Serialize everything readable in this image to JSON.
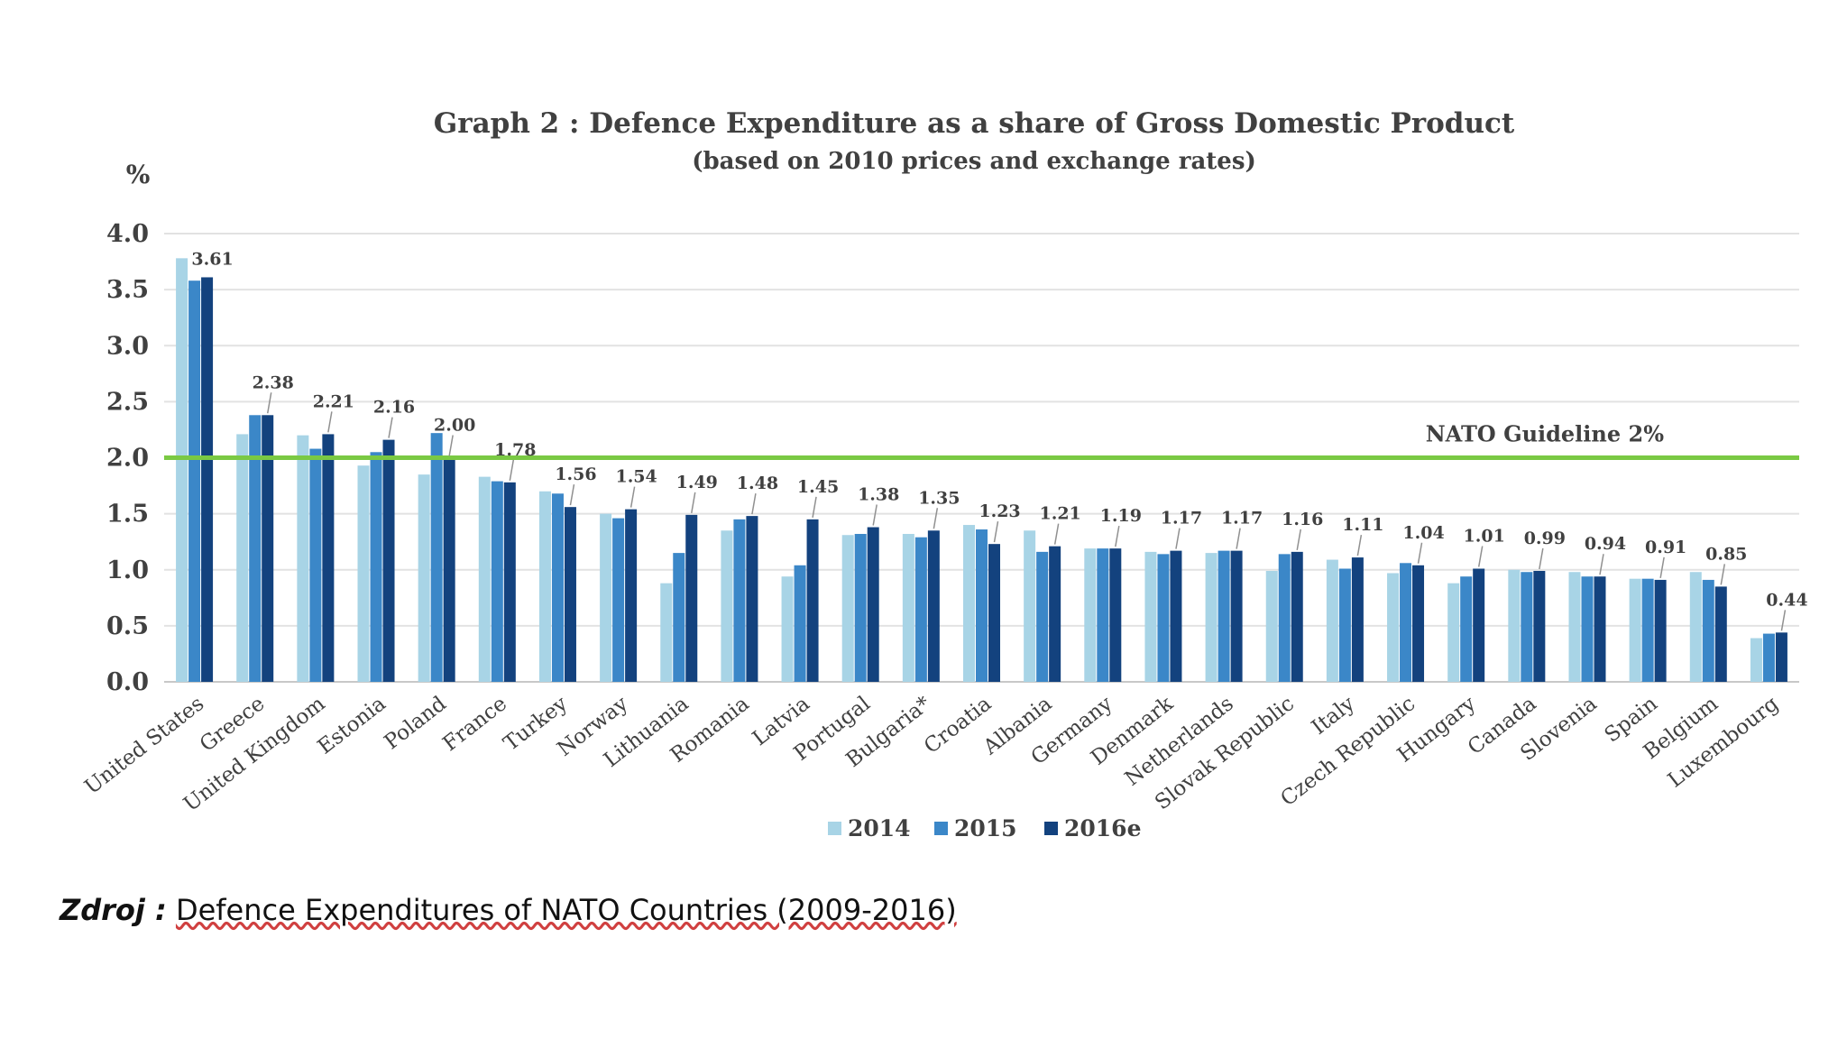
{
  "source": {
    "label": "Zdroj :",
    "text": "Defence Expenditures of NATO Countries (2009-2016)"
  },
  "chart_data": {
    "type": "bar",
    "title": "Graph 2 : Defence Expenditure as a share of Gross Domestic Product",
    "subtitle": "(based on 2010 prices and exchange rates)",
    "ylabel": "%",
    "xlabel": "",
    "ylim": [
      0,
      4
    ],
    "yticks": [
      "0.0",
      "0.5",
      "1.0",
      "1.5",
      "2.0",
      "2.5",
      "3.0",
      "3.5",
      "4.0"
    ],
    "grid": true,
    "legend_position": "bottom",
    "reference_line": {
      "value": 2.0,
      "label": "NATO Guideline 2%",
      "color": "#7ac943"
    },
    "categories": [
      "United States",
      "Greece",
      "United Kingdom",
      "Estonia",
      "Poland",
      "France",
      "Turkey",
      "Norway",
      "Lithuania",
      "Romania",
      "Latvia",
      "Portugal",
      "Bulgaria*",
      "Croatia",
      "Albania",
      "Germany",
      "Denmark",
      "Netherlands",
      "Slovak Republic",
      "Italy",
      "Czech Republic",
      "Hungary",
      "Canada",
      "Slovenia",
      "Spain",
      "Belgium",
      "Luxembourg"
    ],
    "series": [
      {
        "name": "2014",
        "color": "#a8d4e6",
        "values": [
          3.78,
          2.21,
          2.2,
          1.93,
          1.85,
          1.83,
          1.7,
          1.5,
          0.88,
          1.35,
          0.94,
          1.31,
          1.32,
          1.4,
          1.35,
          1.19,
          1.16,
          1.15,
          0.99,
          1.09,
          0.97,
          0.88,
          1.0,
          0.98,
          0.92,
          0.98,
          0.39
        ]
      },
      {
        "name": "2015",
        "color": "#3b87c8",
        "values": [
          3.58,
          2.38,
          2.08,
          2.05,
          2.22,
          1.79,
          1.68,
          1.46,
          1.15,
          1.45,
          1.04,
          1.32,
          1.29,
          1.36,
          1.16,
          1.19,
          1.14,
          1.17,
          1.14,
          1.01,
          1.06,
          0.94,
          0.98,
          0.94,
          0.92,
          0.91,
          0.43
        ]
      },
      {
        "name": "2016e",
        "color": "#13427e",
        "values": [
          3.61,
          2.38,
          2.21,
          2.16,
          2.0,
          1.78,
          1.56,
          1.54,
          1.49,
          1.48,
          1.45,
          1.38,
          1.35,
          1.23,
          1.21,
          1.19,
          1.17,
          1.17,
          1.16,
          1.11,
          1.04,
          1.01,
          0.99,
          0.94,
          0.91,
          0.85,
          0.44
        ]
      }
    ],
    "data_labels": [
      "3.61",
      "2.38",
      "2.21",
      "2.16",
      "2.00",
      "1.78",
      "1.56",
      "1.54",
      "1.49",
      "1.48",
      "1.45",
      "1.38",
      "1.35",
      "1.23",
      "1.21",
      "1.19",
      "1.17",
      "1.17",
      "1.16",
      "1.11",
      "1.04",
      "1.01",
      "0.99",
      "0.94",
      "0.91",
      "0.85",
      "0.44"
    ]
  }
}
